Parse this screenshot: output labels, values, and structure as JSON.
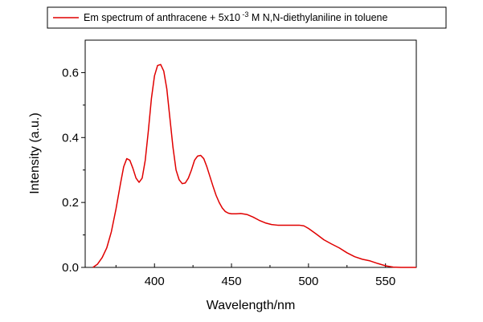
{
  "chart_data": {
    "type": "line",
    "xlabel": "Wavelength/nm",
    "ylabel": "Intensity (a.u.)",
    "xlim": [
      355,
      570
    ],
    "ylim": [
      0,
      0.7
    ],
    "x_ticks": [
      400,
      450,
      500,
      550
    ],
    "x_tick_labels": [
      "400",
      "450",
      "500",
      "550"
    ],
    "y_ticks": [
      0.0,
      0.2,
      0.4,
      0.6
    ],
    "y_tick_labels": [
      "0.0",
      "0.2",
      "0.4",
      "0.6"
    ],
    "legend_position": "top",
    "grid": false,
    "series": [
      {
        "name": "Em spectrum of anthracene + 5x10 -3 M N,N-diethylaniline in toluene",
        "legend": {
          "prefix": "Em spectrum of anthracene + 5x10",
          "superscript": " -3",
          "suffix": " M N,N-diethylaniline in toluene"
        },
        "color": "#e00000",
        "x": [
          360,
          363,
          366,
          369,
          372,
          375,
          378,
          380,
          382,
          384,
          386,
          388,
          390,
          392,
          394,
          396,
          398,
          400,
          402,
          404,
          406,
          408,
          410,
          412,
          414,
          416,
          418,
          420,
          422,
          424,
          426,
          428,
          430,
          432,
          434,
          436,
          438,
          440,
          442,
          444,
          446,
          448,
          450,
          453,
          456,
          460,
          464,
          468,
          472,
          476,
          480,
          485,
          490,
          494,
          497,
          500,
          505,
          510,
          515,
          520,
          525,
          530,
          535,
          540,
          545,
          550,
          555,
          560,
          565,
          570
        ],
        "y": [
          0.0,
          0.01,
          0.03,
          0.06,
          0.11,
          0.18,
          0.26,
          0.31,
          0.335,
          0.33,
          0.305,
          0.275,
          0.262,
          0.275,
          0.33,
          0.42,
          0.52,
          0.59,
          0.622,
          0.625,
          0.605,
          0.55,
          0.46,
          0.37,
          0.3,
          0.27,
          0.258,
          0.26,
          0.275,
          0.3,
          0.33,
          0.343,
          0.345,
          0.335,
          0.31,
          0.28,
          0.25,
          0.222,
          0.2,
          0.183,
          0.172,
          0.167,
          0.165,
          0.165,
          0.166,
          0.163,
          0.155,
          0.145,
          0.137,
          0.132,
          0.13,
          0.13,
          0.13,
          0.13,
          0.128,
          0.12,
          0.103,
          0.085,
          0.072,
          0.06,
          0.045,
          0.033,
          0.025,
          0.02,
          0.012,
          0.005,
          0.001,
          0.0,
          0.0,
          0.0
        ]
      }
    ]
  }
}
